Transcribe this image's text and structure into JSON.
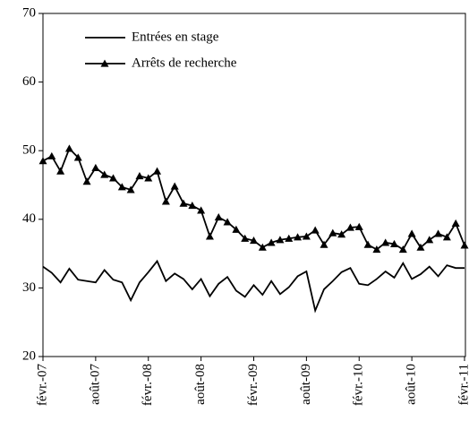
{
  "chart_data": {
    "type": "line",
    "categories": [
      "févr.-07",
      null,
      null,
      null,
      null,
      null,
      "août-07",
      null,
      null,
      null,
      null,
      null,
      "févr.-08",
      null,
      null,
      null,
      null,
      null,
      "août-08",
      null,
      null,
      null,
      null,
      null,
      "févr.-09",
      null,
      null,
      null,
      null,
      null,
      "août-09",
      null,
      null,
      null,
      null,
      null,
      "févr.-10",
      null,
      null,
      null,
      null,
      null,
      "août-10",
      null,
      null,
      null,
      null,
      null,
      "févr.-11"
    ],
    "series": [
      {
        "name": "Entrées en stage",
        "color": "#000000",
        "marker": "none",
        "values": [
          33.1,
          32.2,
          30.8,
          32.8,
          31.2,
          31.0,
          30.8,
          32.6,
          31.2,
          30.8,
          28.2,
          30.8,
          32.3,
          33.9,
          31.0,
          32.1,
          31.3,
          29.8,
          31.3,
          28.8,
          30.6,
          31.6,
          29.6,
          28.7,
          30.4,
          29.0,
          31.0,
          29.1,
          30.1,
          31.7,
          32.4,
          26.7,
          29.8,
          31.0,
          32.3,
          32.9,
          30.6,
          30.4,
          31.3,
          32.4,
          31.5,
          33.6,
          31.3,
          32.0,
          33.1,
          31.7,
          33.3,
          32.9,
          32.9
        ]
      },
      {
        "name": "Arrêts de recherche",
        "color": "#000000",
        "marker": "triangle",
        "values": [
          48.5,
          49.2,
          47.0,
          50.3,
          49.0,
          45.5,
          47.5,
          46.5,
          46.0,
          44.7,
          44.3,
          46.3,
          46.0,
          47.0,
          42.6,
          44.8,
          42.3,
          42.0,
          41.3,
          37.5,
          40.3,
          39.6,
          38.5,
          37.2,
          36.9,
          35.9,
          36.6,
          37.0,
          37.2,
          37.4,
          37.5,
          38.4,
          36.3,
          38.0,
          37.8,
          38.8,
          38.9,
          36.3,
          35.6,
          36.6,
          36.4,
          35.6,
          37.9,
          35.9,
          37.0,
          37.9,
          37.4,
          39.4,
          36.2
        ]
      }
    ],
    "ylim": [
      20,
      70
    ],
    "yticks": [
      20,
      30,
      40,
      50,
      60,
      70
    ],
    "grid": false,
    "legend": "upper left"
  }
}
